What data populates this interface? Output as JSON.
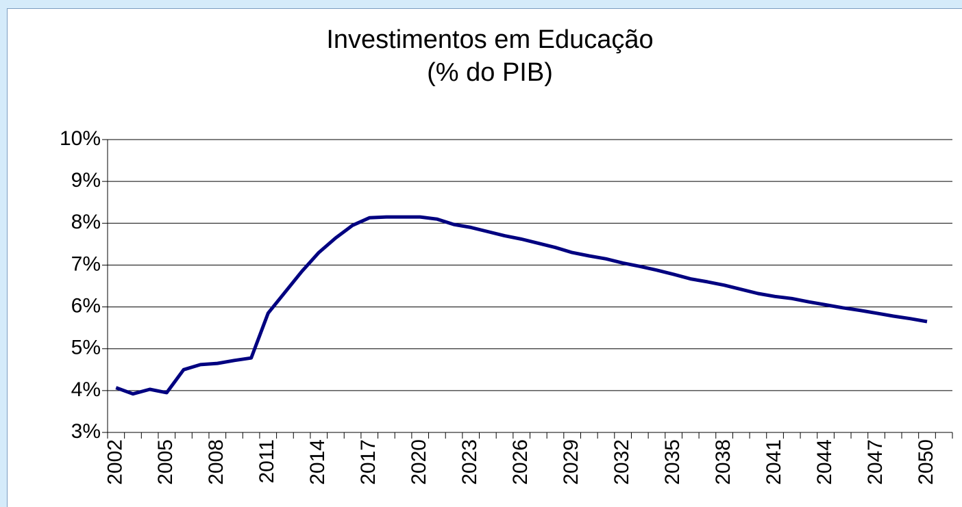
{
  "chart_data": {
    "type": "line",
    "title": "Investimentos em Educação",
    "subtitle": "(% do PIB)",
    "categories": [
      "2002",
      null,
      null,
      "2005",
      null,
      null,
      "2008",
      null,
      null,
      "2011",
      null,
      null,
      "2014",
      null,
      null,
      "2017",
      null,
      null,
      "2020",
      null,
      null,
      "2023",
      null,
      null,
      "2026",
      null,
      null,
      "2029",
      null,
      null,
      "2032",
      null,
      null,
      "2035",
      null,
      null,
      "2038",
      null,
      null,
      "2041",
      null,
      null,
      "2044",
      null,
      null,
      "2047",
      null,
      null,
      "2050",
      null
    ],
    "series": [
      {
        "color": "#000080",
        "values": [
          4.07,
          3.92,
          4.03,
          3.95,
          4.5,
          4.62,
          4.65,
          4.72,
          4.78,
          5.85,
          6.35,
          6.85,
          7.3,
          7.65,
          7.95,
          8.13,
          8.15,
          8.15,
          8.15,
          8.1,
          7.97,
          7.9,
          7.8,
          7.7,
          7.62,
          7.52,
          7.42,
          7.3,
          7.22,
          7.15,
          7.05,
          6.97,
          6.88,
          6.78,
          6.67,
          6.6,
          6.52,
          6.42,
          6.32,
          6.25,
          6.2,
          6.12,
          6.05,
          5.98,
          5.92,
          5.85,
          5.78,
          5.72,
          5.65,
          null
        ]
      }
    ],
    "ylim": [
      3,
      10
    ],
    "yticks": [
      {
        "value": 3,
        "label": "3%"
      },
      {
        "value": 4,
        "label": "4%"
      },
      {
        "value": 5,
        "label": "5%"
      },
      {
        "value": 6,
        "label": "6%"
      },
      {
        "value": 7,
        "label": "7%"
      },
      {
        "value": 8,
        "label": "8%"
      },
      {
        "value": 9,
        "label": "9%"
      },
      {
        "value": 10,
        "label": "10%"
      }
    ],
    "grid": true
  }
}
